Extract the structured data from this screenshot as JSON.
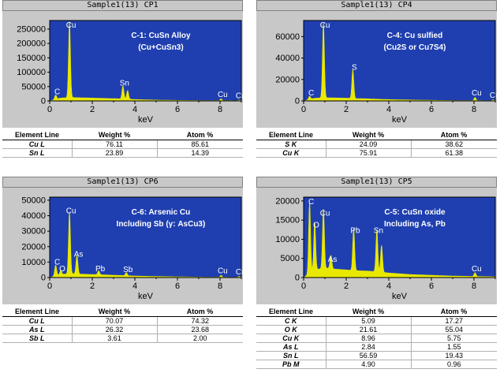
{
  "panels": [
    {
      "title": "Sample1(13) CP1",
      "annotation": [
        "C-1: CuSn Alloy",
        "(Cu+CuSn3)"
      ],
      "table": {
        "headers": [
          "Element Line",
          "Weight %",
          "Atom %"
        ],
        "rows": [
          [
            "Cu L",
            "76.11",
            "85.61"
          ],
          [
            "Sn L",
            "23.89",
            "14.39"
          ]
        ]
      }
    },
    {
      "title": "Sample1(13) CP4",
      "annotation": [
        "C-4: Cu sulfied",
        "(Cu2S or Cu7S4)"
      ],
      "table": {
        "headers": [
          "Element Line",
          "Weight %",
          "Atom %"
        ],
        "rows": [
          [
            "S K",
            "24.09",
            "38.62"
          ],
          [
            "Cu K",
            "75.91",
            "61.38"
          ]
        ]
      }
    },
    {
      "title": "Sample1(13) CP6",
      "annotation": [
        "C-6: Arsenic Cu",
        "Including Sb (γ: AsCu3)"
      ],
      "table": {
        "headers": [
          "Element Line",
          "Weight %",
          "Atom %"
        ],
        "rows": [
          [
            "Cu L",
            "70.07",
            "74.32"
          ],
          [
            "As L",
            "26.32",
            "23.68"
          ],
          [
            "Sb L",
            "3.61",
            "2.00"
          ]
        ]
      }
    },
    {
      "title": "Sample1(13) CP5",
      "annotation": [
        "C-5: CuSn oxide",
        "Including As, Pb"
      ],
      "table": {
        "headers": [
          "Element Line",
          "Weight %",
          "Atom %"
        ],
        "rows": [
          [
            "C K",
            "5.09",
            "17.27"
          ],
          [
            "O K",
            "21.61",
            "55.04"
          ],
          [
            "Cu K",
            "8.96",
            "5.75"
          ],
          [
            "As L",
            "2.84",
            "1.55"
          ],
          [
            "Sn L",
            "56.59",
            "19.43"
          ],
          [
            "Pb M",
            "4.90",
            "0.96"
          ]
        ]
      }
    }
  ],
  "chart_data": [
    {
      "type": "line",
      "title": "Sample1(13) CP1",
      "xlabel": "keV",
      "ylabel": "",
      "xlim": [
        0,
        9
      ],
      "ylim": [
        0,
        280000
      ],
      "xticks": [
        0,
        2,
        4,
        6,
        8
      ],
      "yticks": [
        0,
        50000,
        100000,
        150000,
        200000,
        250000
      ],
      "ytick_labels": [
        "0",
        "50000",
        "100000",
        "150000",
        "200000",
        "250000"
      ],
      "peaks": [
        {
          "x": 0.28,
          "y": 15000,
          "label": "C"
        },
        {
          "x": 0.93,
          "y": 265000,
          "label": "Cu"
        },
        {
          "x": 3.44,
          "y": 45000,
          "label": "Sn"
        },
        {
          "x": 3.66,
          "y": 30000,
          "label": ""
        },
        {
          "x": 8.05,
          "y": 6000,
          "label": "Cu"
        },
        {
          "x": 8.9,
          "y": 2000,
          "label": "Cu"
        }
      ],
      "x": [
        0,
        0.5,
        1.0,
        1.5,
        2.0,
        2.5,
        3.0,
        3.5,
        4.0,
        5.0,
        6.0,
        7.0,
        8.0,
        9.0
      ],
      "background": [
        0,
        10000,
        12000,
        11000,
        10000,
        9000,
        8000,
        7000,
        5000,
        3000,
        2000,
        1500,
        1200,
        800
      ]
    },
    {
      "type": "line",
      "title": "Sample1(13) CP4",
      "xlabel": "keV",
      "ylabel": "",
      "xlim": [
        0,
        9
      ],
      "ylim": [
        0,
        75000
      ],
      "xticks": [
        0,
        2,
        4,
        6,
        8
      ],
      "yticks": [
        0,
        20000,
        40000,
        60000
      ],
      "ytick_labels": [
        "0",
        "20000",
        "40000",
        "60000"
      ],
      "peaks": [
        {
          "x": 0.28,
          "y": 3000,
          "label": "C"
        },
        {
          "x": 0.93,
          "y": 70000,
          "label": "Cu"
        },
        {
          "x": 2.31,
          "y": 27000,
          "label": "S"
        },
        {
          "x": 8.05,
          "y": 3000,
          "label": "Cu"
        },
        {
          "x": 8.9,
          "y": 800,
          "label": "Cu"
        }
      ],
      "x": [
        0,
        0.5,
        1.0,
        1.5,
        2.0,
        2.5,
        3.0,
        3.5,
        4.0,
        5.0,
        6.0,
        7.0,
        8.0,
        9.0
      ],
      "background": [
        0,
        2500,
        3000,
        2800,
        2600,
        2200,
        2000,
        1600,
        1300,
        900,
        600,
        400,
        300,
        200
      ]
    },
    {
      "type": "line",
      "title": "Sample1(13) CP6",
      "xlabel": "keV",
      "ylabel": "",
      "xlim": [
        0,
        9
      ],
      "ylim": [
        0,
        52000
      ],
      "xticks": [
        0,
        2,
        4,
        6,
        8
      ],
      "yticks": [
        0,
        10000,
        20000,
        30000,
        40000,
        50000
      ],
      "ytick_labels": [
        "0",
        "10000",
        "20000",
        "30000",
        "40000",
        "50000"
      ],
      "peaks": [
        {
          "x": 0.28,
          "y": 7000,
          "label": "C"
        },
        {
          "x": 0.52,
          "y": 2500,
          "label": "O"
        },
        {
          "x": 0.93,
          "y": 40000,
          "label": "Cu"
        },
        {
          "x": 1.28,
          "y": 12000,
          "label": "As"
        },
        {
          "x": 2.3,
          "y": 2500,
          "label": "Pb"
        },
        {
          "x": 3.6,
          "y": 2000,
          "label": "Sb"
        },
        {
          "x": 8.05,
          "y": 1200,
          "label": "Cu"
        },
        {
          "x": 8.9,
          "y": 600,
          "label": "Cu"
        }
      ],
      "x": [
        0,
        0.5,
        1.0,
        1.5,
        2.0,
        2.5,
        3.0,
        3.5,
        4.0,
        5.0,
        6.0,
        7.0,
        8.0,
        9.0
      ],
      "background": [
        0,
        2000,
        2500,
        2200,
        2000,
        1800,
        1500,
        1300,
        1000,
        700,
        500,
        300,
        200,
        150
      ]
    },
    {
      "type": "line",
      "title": "Sample1(13) CP5",
      "xlabel": "keV",
      "ylabel": "",
      "xlim": [
        0,
        9
      ],
      "ylim": [
        0,
        21000
      ],
      "xticks": [
        0,
        2,
        4,
        6,
        8
      ],
      "yticks": [
        0,
        5000,
        10000,
        15000,
        20000
      ],
      "ytick_labels": [
        "0",
        "5000",
        "10000",
        "15000",
        "20000"
      ],
      "peaks": [
        {
          "x": 0.28,
          "y": 18500,
          "label": "C"
        },
        {
          "x": 0.52,
          "y": 12500,
          "label": "O"
        },
        {
          "x": 0.93,
          "y": 15500,
          "label": "Cu"
        },
        {
          "x": 1.28,
          "y": 3500,
          "label": "As"
        },
        {
          "x": 2.35,
          "y": 11000,
          "label": "Pb"
        },
        {
          "x": 3.44,
          "y": 11000,
          "label": "Sn"
        },
        {
          "x": 3.66,
          "y": 7000,
          "label": ""
        },
        {
          "x": 8.05,
          "y": 1000,
          "label": "Cu"
        }
      ],
      "x": [
        0,
        0.5,
        1.0,
        1.5,
        2.0,
        2.5,
        3.0,
        3.5,
        4.0,
        5.0,
        6.0,
        7.0,
        8.0,
        9.0
      ],
      "background": [
        0,
        2000,
        2500,
        2200,
        2000,
        1800,
        1700,
        1500,
        1200,
        800,
        600,
        400,
        300,
        200
      ]
    }
  ],
  "colors": {
    "plot_bg": "#1f3fb0",
    "spectrum": "#e8e800",
    "frame_bg": "#c8c8c8",
    "annotation_text": "#ffffff"
  }
}
